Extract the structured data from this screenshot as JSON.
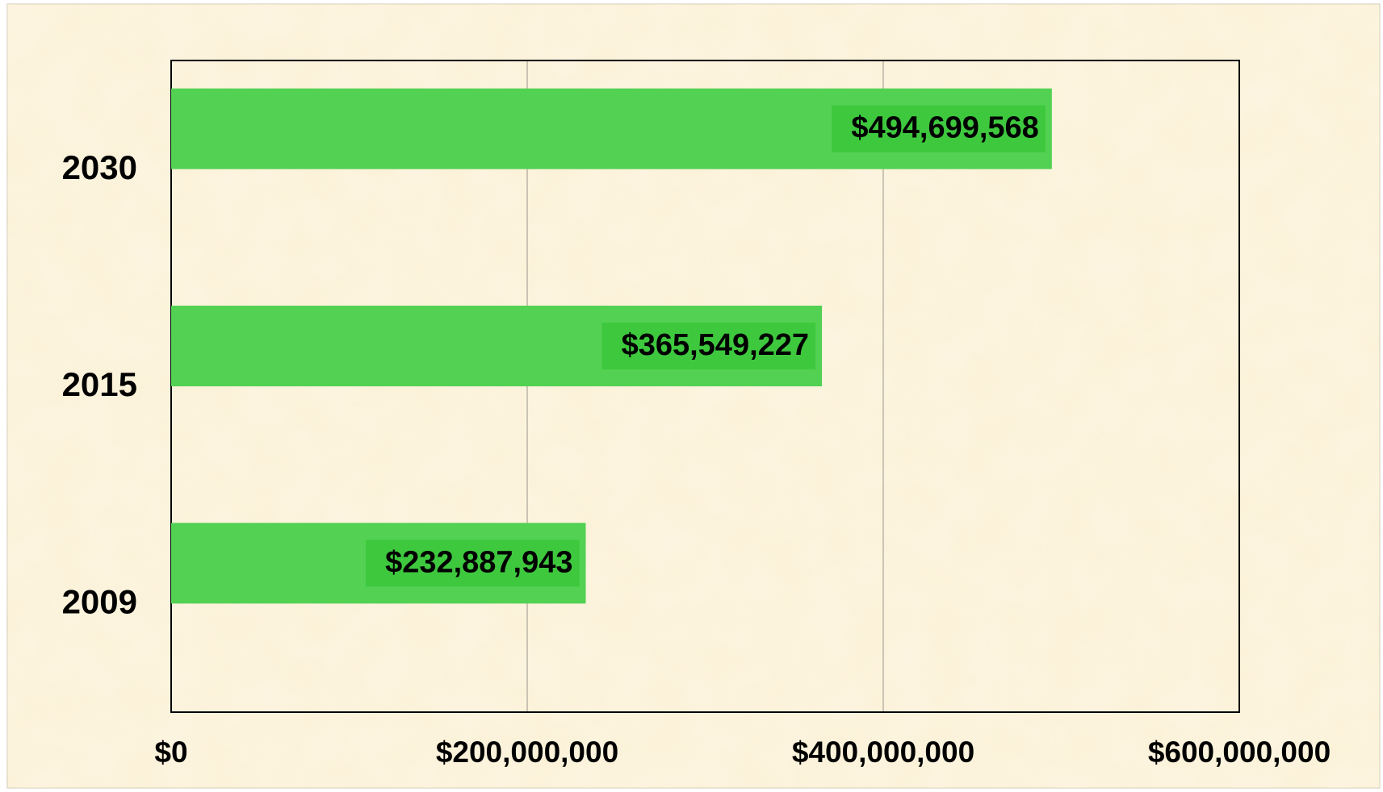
{
  "chart_data": {
    "type": "bar",
    "orientation": "horizontal",
    "categories": [
      "2009",
      "2015",
      "2030"
    ],
    "values": [
      232887943,
      365549227,
      494699568
    ],
    "value_labels": [
      "$232,887,943",
      "$365,549,227",
      "$494,699,568"
    ],
    "color": "#52d152",
    "xlim": [
      0,
      600000000
    ],
    "xticks": [
      {
        "value": 0,
        "label": "$0"
      },
      {
        "value": 200000000,
        "label": "$200,000,000"
      },
      {
        "value": 400000000,
        "label": "$400,000,000"
      },
      {
        "value": 600000000,
        "label": "$600,000,000"
      }
    ],
    "grid": true
  }
}
